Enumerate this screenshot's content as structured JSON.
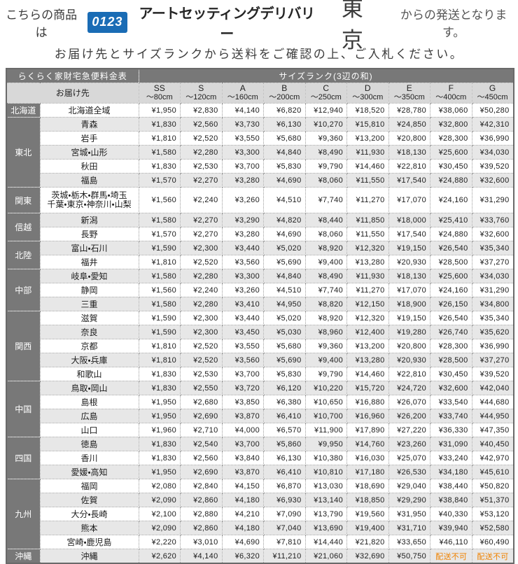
{
  "header": {
    "line1_prefix": "こちらの商品は",
    "logo_badge": "0123",
    "logo_name": "アートセッティングデリバリー",
    "logo_city": "東京",
    "line1_suffix": "からの発送となります。",
    "line2": "お届け先とサイズランクから送料をご確認の上、ご入札ください。"
  },
  "colors": {
    "logo_blue": "#1a6cb5",
    "header_dark_gray": "#787878",
    "header_light_gray": "#d8d8d8",
    "row_stripe_gray": "#e7e7e7",
    "unavailable_orange": "#ef8200"
  },
  "table": {
    "title": "らくらく家財宅急便料金表",
    "size_rank_header": "サイズランク(3辺の和)",
    "destination_header": "お届け先",
    "unavailable_label": "配送不可",
    "size_columns": [
      {
        "code": "SS",
        "range": "〜80cm"
      },
      {
        "code": "S",
        "range": "〜120cm"
      },
      {
        "code": "A",
        "range": "〜160cm"
      },
      {
        "code": "B",
        "range": "〜200cm"
      },
      {
        "code": "C",
        "range": "〜250cm"
      },
      {
        "code": "D",
        "range": "〜300cm"
      },
      {
        "code": "E",
        "range": "〜350cm"
      },
      {
        "code": "F",
        "range": "〜400cm"
      },
      {
        "code": "G",
        "range": "〜450cm"
      }
    ],
    "regions": [
      {
        "name": "北海道",
        "rows": [
          {
            "dest": "北海道全域",
            "prices": [
              "¥1,950",
              "¥2,830",
              "¥4,140",
              "¥6,820",
              "¥12,940",
              "¥18,520",
              "¥28,780",
              "¥38,060",
              "¥50,280"
            ]
          }
        ]
      },
      {
        "name": "東北",
        "rows": [
          {
            "dest": "青森",
            "prices": [
              "¥1,830",
              "¥2,560",
              "¥3,730",
              "¥6,130",
              "¥10,270",
              "¥15,810",
              "¥24,850",
              "¥32,800",
              "¥42,310"
            ]
          },
          {
            "dest": "岩手",
            "prices": [
              "¥1,810",
              "¥2,520",
              "¥3,550",
              "¥5,680",
              "¥9,360",
              "¥13,200",
              "¥20,800",
              "¥28,300",
              "¥36,990"
            ]
          },
          {
            "dest": "宮城・山形",
            "prices": [
              "¥1,580",
              "¥2,280",
              "¥3,300",
              "¥4,840",
              "¥8,490",
              "¥11,930",
              "¥18,130",
              "¥25,600",
              "¥34,030"
            ]
          },
          {
            "dest": "秋田",
            "prices": [
              "¥1,830",
              "¥2,530",
              "¥3,700",
              "¥5,830",
              "¥9,790",
              "¥14,460",
              "¥22,810",
              "¥30,450",
              "¥39,520"
            ]
          },
          {
            "dest": "福島",
            "prices": [
              "¥1,570",
              "¥2,270",
              "¥3,280",
              "¥4,690",
              "¥8,060",
              "¥11,550",
              "¥17,540",
              "¥24,880",
              "¥32,600"
            ]
          }
        ]
      },
      {
        "name": "関東",
        "rows": [
          {
            "dest": "茨城・栃木・群馬・埼玉\n千葉・東京・神奈川・山梨",
            "prices": [
              "¥1,560",
              "¥2,240",
              "¥3,260",
              "¥4,510",
              "¥7,740",
              "¥11,270",
              "¥17,070",
              "¥24,160",
              "¥31,290"
            ]
          }
        ]
      },
      {
        "name": "信越",
        "rows": [
          {
            "dest": "新潟",
            "prices": [
              "¥1,580",
              "¥2,270",
              "¥3,290",
              "¥4,820",
              "¥8,440",
              "¥11,850",
              "¥18,000",
              "¥25,410",
              "¥33,760"
            ]
          },
          {
            "dest": "長野",
            "prices": [
              "¥1,570",
              "¥2,270",
              "¥3,280",
              "¥4,690",
              "¥8,060",
              "¥11,550",
              "¥17,540",
              "¥24,880",
              "¥32,600"
            ]
          }
        ]
      },
      {
        "name": "北陸",
        "rows": [
          {
            "dest": "富山・石川",
            "prices": [
              "¥1,590",
              "¥2,300",
              "¥3,440",
              "¥5,020",
              "¥8,920",
              "¥12,320",
              "¥19,150",
              "¥26,540",
              "¥35,340"
            ]
          },
          {
            "dest": "福井",
            "prices": [
              "¥1,810",
              "¥2,520",
              "¥3,560",
              "¥5,690",
              "¥9,400",
              "¥13,280",
              "¥20,930",
              "¥28,500",
              "¥37,270"
            ]
          }
        ]
      },
      {
        "name": "中部",
        "rows": [
          {
            "dest": "岐阜・愛知",
            "prices": [
              "¥1,580",
              "¥2,280",
              "¥3,300",
              "¥4,840",
              "¥8,490",
              "¥11,930",
              "¥18,130",
              "¥25,600",
              "¥34,030"
            ]
          },
          {
            "dest": "静岡",
            "prices": [
              "¥1,560",
              "¥2,240",
              "¥3,260",
              "¥4,510",
              "¥7,740",
              "¥11,270",
              "¥17,070",
              "¥24,160",
              "¥31,290"
            ]
          },
          {
            "dest": "三重",
            "prices": [
              "¥1,580",
              "¥2,280",
              "¥3,410",
              "¥4,950",
              "¥8,820",
              "¥12,150",
              "¥18,900",
              "¥26,150",
              "¥34,800"
            ]
          }
        ]
      },
      {
        "name": "関西",
        "rows": [
          {
            "dest": "滋賀",
            "prices": [
              "¥1,590",
              "¥2,300",
              "¥3,440",
              "¥5,020",
              "¥8,920",
              "¥12,320",
              "¥19,150",
              "¥26,540",
              "¥35,340"
            ]
          },
          {
            "dest": "奈良",
            "prices": [
              "¥1,590",
              "¥2,300",
              "¥3,450",
              "¥5,030",
              "¥8,960",
              "¥12,400",
              "¥19,280",
              "¥26,740",
              "¥35,620"
            ]
          },
          {
            "dest": "京都",
            "prices": [
              "¥1,810",
              "¥2,520",
              "¥3,550",
              "¥5,680",
              "¥9,360",
              "¥13,200",
              "¥20,800",
              "¥28,300",
              "¥36,990"
            ]
          },
          {
            "dest": "大阪・兵庫",
            "prices": [
              "¥1,810",
              "¥2,520",
              "¥3,560",
              "¥5,690",
              "¥9,400",
              "¥13,280",
              "¥20,930",
              "¥28,500",
              "¥37,270"
            ]
          },
          {
            "dest": "和歌山",
            "prices": [
              "¥1,830",
              "¥2,530",
              "¥3,700",
              "¥5,830",
              "¥9,790",
              "¥14,460",
              "¥22,810",
              "¥30,450",
              "¥39,520"
            ]
          }
        ]
      },
      {
        "name": "中国",
        "rows": [
          {
            "dest": "鳥取・岡山",
            "prices": [
              "¥1,830",
              "¥2,550",
              "¥3,720",
              "¥6,120",
              "¥10,220",
              "¥15,720",
              "¥24,720",
              "¥32,600",
              "¥42,040"
            ]
          },
          {
            "dest": "島根",
            "prices": [
              "¥1,950",
              "¥2,680",
              "¥3,850",
              "¥6,380",
              "¥10,650",
              "¥16,880",
              "¥26,070",
              "¥33,540",
              "¥44,680"
            ]
          },
          {
            "dest": "広島",
            "prices": [
              "¥1,950",
              "¥2,690",
              "¥3,870",
              "¥6,410",
              "¥10,700",
              "¥16,960",
              "¥26,200",
              "¥33,740",
              "¥44,950"
            ]
          },
          {
            "dest": "山口",
            "prices": [
              "¥1,960",
              "¥2,710",
              "¥4,000",
              "¥6,570",
              "¥11,900",
              "¥17,890",
              "¥27,220",
              "¥36,330",
              "¥47,350"
            ]
          }
        ]
      },
      {
        "name": "四国",
        "rows": [
          {
            "dest": "徳島",
            "prices": [
              "¥1,830",
              "¥2,540",
              "¥3,700",
              "¥5,860",
              "¥9,950",
              "¥14,760",
              "¥23,260",
              "¥31,090",
              "¥40,450"
            ]
          },
          {
            "dest": "香川",
            "prices": [
              "¥1,830",
              "¥2,560",
              "¥3,840",
              "¥6,130",
              "¥10,380",
              "¥16,030",
              "¥25,070",
              "¥33,240",
              "¥42,970"
            ]
          },
          {
            "dest": "愛媛・高知",
            "prices": [
              "¥1,950",
              "¥2,690",
              "¥3,870",
              "¥6,410",
              "¥10,810",
              "¥17,180",
              "¥26,530",
              "¥34,180",
              "¥45,610"
            ]
          }
        ]
      },
      {
        "name": "九州",
        "rows": [
          {
            "dest": "福岡",
            "prices": [
              "¥2,080",
              "¥2,840",
              "¥4,150",
              "¥6,870",
              "¥13,030",
              "¥18,690",
              "¥29,040",
              "¥38,440",
              "¥50,820"
            ]
          },
          {
            "dest": "佐賀",
            "prices": [
              "¥2,090",
              "¥2,860",
              "¥4,180",
              "¥6,930",
              "¥13,140",
              "¥18,850",
              "¥29,290",
              "¥38,840",
              "¥51,370"
            ]
          },
          {
            "dest": "大分・長崎",
            "prices": [
              "¥2,100",
              "¥2,880",
              "¥4,210",
              "¥7,090",
              "¥13,790",
              "¥19,560",
              "¥31,950",
              "¥40,330",
              "¥53,120"
            ]
          },
          {
            "dest": "熊本",
            "prices": [
              "¥2,090",
              "¥2,860",
              "¥4,180",
              "¥7,040",
              "¥13,690",
              "¥19,400",
              "¥31,710",
              "¥39,940",
              "¥52,580"
            ]
          },
          {
            "dest": "宮崎・鹿児島",
            "prices": [
              "¥2,220",
              "¥3,010",
              "¥4,690",
              "¥7,810",
              "¥14,440",
              "¥21,820",
              "¥33,650",
              "¥46,110",
              "¥60,490"
            ]
          }
        ]
      },
      {
        "name": "沖縄",
        "rows": [
          {
            "dest": "沖縄",
            "prices": [
              "¥2,620",
              "¥4,140",
              "¥6,320",
              "¥11,210",
              "¥21,060",
              "¥32,690",
              "¥50,750",
              "配送不可",
              "配送不可"
            ]
          }
        ]
      }
    ]
  }
}
